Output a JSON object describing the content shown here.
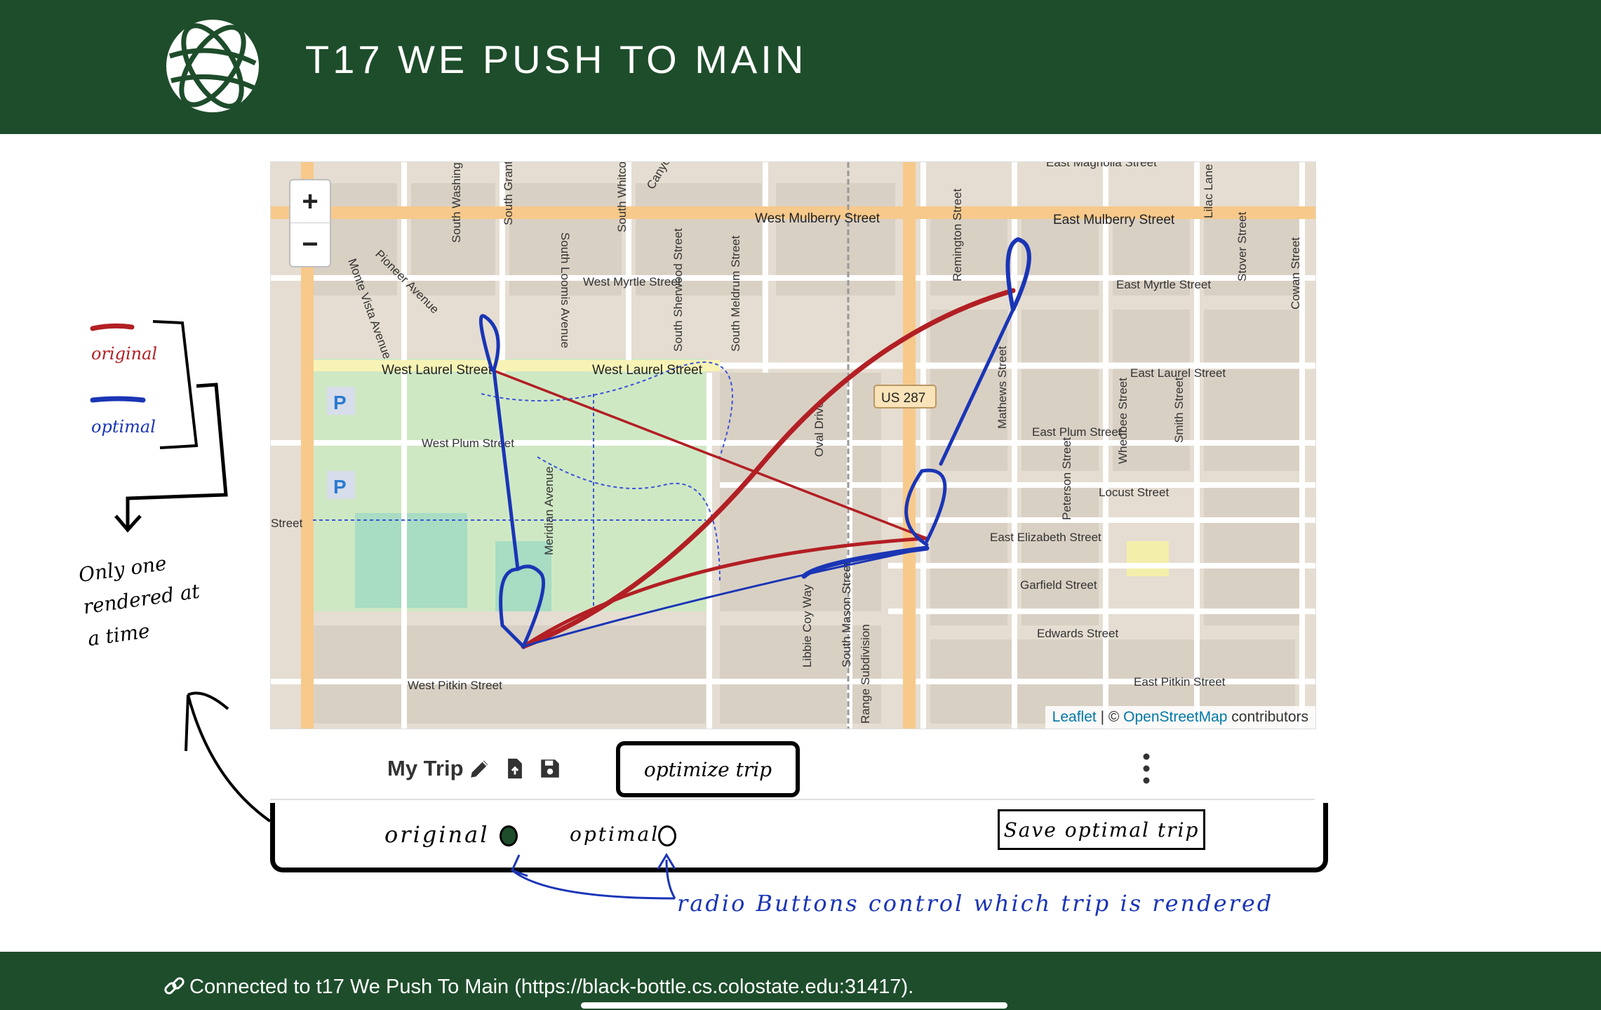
{
  "header": {
    "title": "T17 WE PUSH TO MAIN",
    "logo_icon": "globe-icon"
  },
  "map": {
    "zoom_in": "+",
    "zoom_out": "−",
    "attribution_leaflet": "Leaflet",
    "attribution_sep": " | © ",
    "attribution_osm": "OpenStreetMap",
    "attribution_tail": " contributors",
    "streets": {
      "west_mulberry": "West Mulberry Street",
      "east_mulberry": "East Mulberry Street",
      "east_magnolia": "East Magnolia Street",
      "west_laurel_1": "West Laurel Street",
      "west_laurel_2": "West Laurel Street",
      "east_laurel": "East Laurel Street",
      "west_plum": "West Plum Street",
      "east_plum": "East Plum Street",
      "locust": "Locust Street",
      "east_elizabeth": "East Elizabeth Street",
      "garfield": "Garfield Street",
      "edwards": "Edwards Street",
      "east_pitkin": "East Pitkin Street",
      "west_pitkin": "West Pitkin Street",
      "west_myrtle": "West Myrtle Street",
      "east_myrtle": "East Myrtle Street",
      "us287": "US 287",
      "pioneer": "Pioneer Avenue",
      "monte_vista": "Monte Vista Avenue",
      "south_loomis": "South Loomis Avenue",
      "south_sherwood": "South Sherwood Street",
      "south_meldrum": "South Meldrum Street",
      "remington": "Remington Street",
      "mathews": "Mathews Street",
      "peterson": "Peterson Street",
      "whedbee": "Whedbee Street",
      "smith": "Smith Street",
      "stover": "Stover Street",
      "cowan": "Cowan Street",
      "lilac": "Lilac Lane",
      "south_mason": "South Mason Street",
      "libbie_coy": "Libbie Coy Way",
      "meridian": "Meridian Avenue",
      "oval": "Oval Drive",
      "range_sub": "Range Subdivision",
      "canyon": "Canyon",
      "south_grant": "South Grant",
      "south_washing": "South Washing",
      "south_whitco": "South Whitco",
      "street": "Street"
    }
  },
  "toolbar": {
    "trip_title": "My Trip",
    "edit_icon": "pencil-icon",
    "load_icon": "file-upload-icon",
    "save_icon": "floppy-disk-icon",
    "optimize_label": "optimize trip",
    "menu_icon": "kebab-menu-icon"
  },
  "options": {
    "original_label": "original",
    "optimal_label": "optimal",
    "selected": "original",
    "save_optimal_label": "Save optimal trip"
  },
  "annotations": {
    "legend_original": "original",
    "legend_optimal": "optimal",
    "only_one": [
      "Only one",
      "rendered at",
      "a time"
    ],
    "radio_note": "radio Buttons control which trip is rendered"
  },
  "colors": {
    "brand_green": "#1e4d2b",
    "route_original": "#b21f24",
    "route_optimal": "#1a35b5"
  },
  "footer": {
    "link_icon": "link-icon",
    "connected_text": "Connected to t17 We Push To Main  (https://black-bottle.cs.colostate.edu:31417)."
  }
}
